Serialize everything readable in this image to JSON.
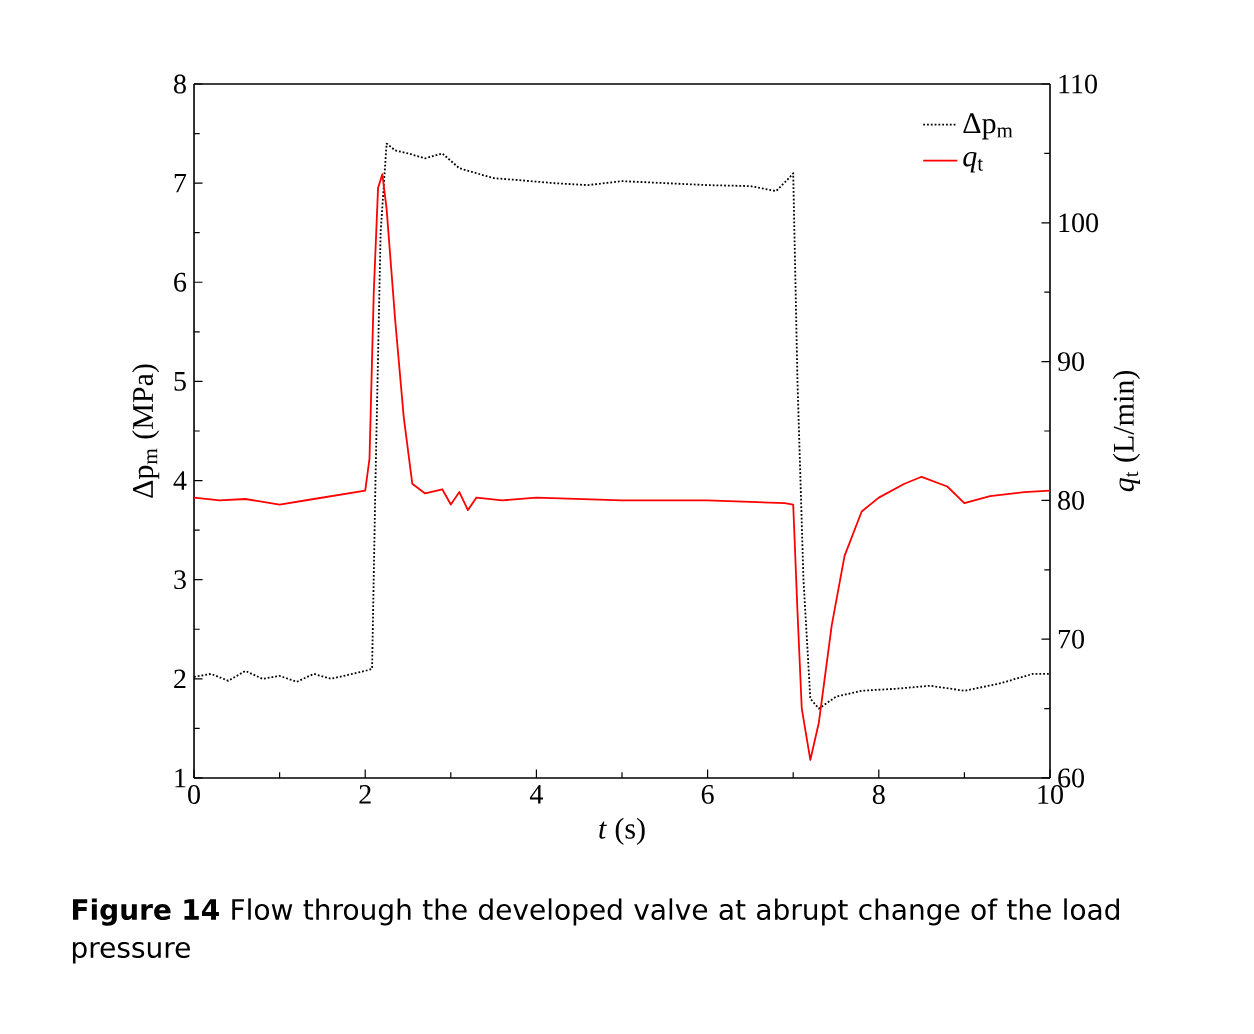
{
  "chart_data": {
    "type": "line",
    "xlabel": "*t* (s)",
    "ylabel": "Δp$_{m}$ (MPa)",
    "y2label": "*q*$_{t}$ (L/min)",
    "xlim": [
      0,
      10
    ],
    "xticks": [
      0,
      2,
      4,
      6,
      8,
      10
    ],
    "ylim": [
      1,
      8
    ],
    "yticks": [
      1,
      2,
      3,
      4,
      5,
      6,
      7,
      8
    ],
    "y2lim": [
      60,
      110
    ],
    "y2ticks": [
      60,
      70,
      80,
      90,
      100,
      110
    ],
    "grid": false,
    "legend": "top right",
    "marker": "none",
    "series": [
      {
        "name": "Δp$_{m}$",
        "color": "#000000",
        "axis": "y",
        "line_style": "dotted",
        "x": [
          0,
          0.2,
          0.4,
          0.6,
          0.8,
          1.0,
          1.2,
          1.4,
          1.6,
          1.8,
          2.0,
          2.08,
          2.12,
          2.18,
          2.25,
          2.35,
          2.5,
          2.7,
          2.9,
          3.1,
          3.3,
          3.5,
          3.8,
          4.2,
          4.6,
          5.0,
          5.5,
          6.0,
          6.5,
          6.8,
          6.95,
          7.0,
          7.05,
          7.12,
          7.2,
          7.3,
          7.5,
          7.8,
          8.2,
          8.6,
          9.0,
          9.4,
          9.8,
          10
        ],
        "values": [
          2.02,
          2.05,
          1.98,
          2.08,
          2.0,
          2.03,
          1.97,
          2.05,
          2.0,
          2.04,
          2.08,
          2.1,
          4.0,
          6.5,
          7.4,
          7.33,
          7.3,
          7.25,
          7.3,
          7.15,
          7.1,
          7.05,
          7.03,
          7.0,
          6.98,
          7.02,
          7.0,
          6.98,
          6.97,
          6.92,
          7.05,
          7.1,
          5.0,
          3.0,
          1.8,
          1.7,
          1.82,
          1.88,
          1.9,
          1.93,
          1.88,
          1.95,
          2.05,
          2.05
        ]
      },
      {
        "name": "*q*$_{t}$",
        "color": "#ff0000",
        "axis": "y2",
        "line_style": "solid",
        "x": [
          0,
          0.3,
          0.6,
          1.0,
          1.4,
          1.8,
          2.0,
          2.05,
          2.1,
          2.15,
          2.2,
          2.25,
          2.35,
          2.45,
          2.55,
          2.7,
          2.9,
          3.0,
          3.1,
          3.2,
          3.3,
          3.6,
          4.0,
          5.0,
          6.0,
          6.9,
          7.0,
          7.05,
          7.1,
          7.2,
          7.3,
          7.45,
          7.6,
          7.8,
          8.0,
          8.3,
          8.5,
          8.8,
          9.0,
          9.3,
          9.7,
          10
        ],
        "values": [
          80.2,
          80.0,
          80.1,
          79.7,
          80.1,
          80.5,
          80.7,
          83,
          95,
          102.5,
          103.5,
          101,
          93,
          86,
          81.2,
          80.5,
          80.8,
          79.7,
          80.6,
          79.3,
          80.2,
          80.0,
          80.2,
          80.0,
          80.0,
          79.8,
          79.7,
          72,
          65,
          61.3,
          64,
          71,
          76,
          79.2,
          80.2,
          81.2,
          81.7,
          81.0,
          79.8,
          80.3,
          80.6,
          80.7
        ]
      }
    ],
    "annotations": [
      "**Figure 14**  Flow through the developed valve at abrupt change of the load pressure"
    ]
  }
}
